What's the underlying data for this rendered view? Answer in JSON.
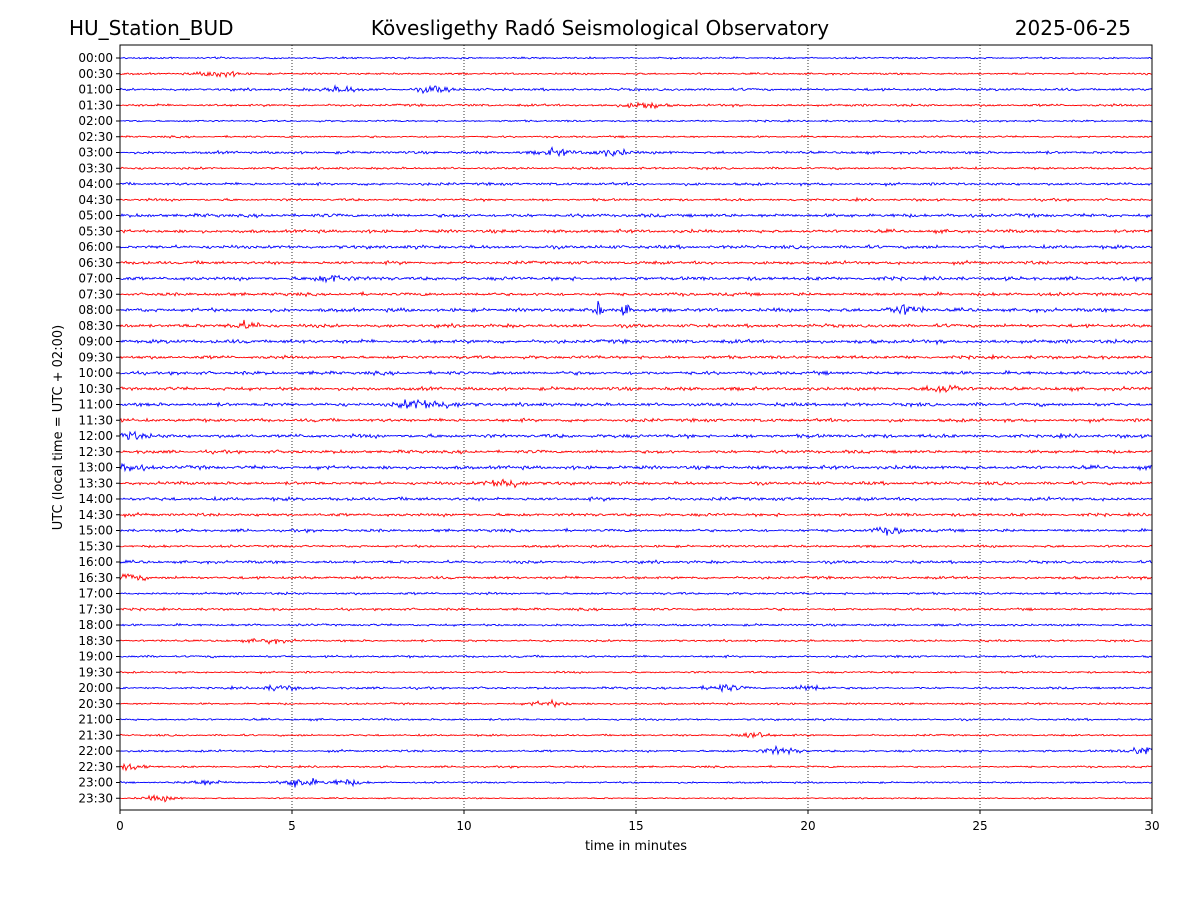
{
  "header": {
    "station": "HU_Station_BUD",
    "title": "Kövesligethy Radó Seismological Observatory",
    "date": "2025-06-25"
  },
  "chart_data": {
    "type": "line",
    "subtype": "helicorder",
    "xlabel": "time in minutes",
    "ylabel": "UTC (local time = UTC + 02:00)",
    "xlim": [
      0,
      30
    ],
    "x_ticks": [
      0,
      5,
      10,
      15,
      20,
      25,
      30
    ],
    "vertical_gridlines": [
      5,
      10,
      15,
      20,
      25
    ],
    "grid_style": "dotted vertical",
    "trace_colors": [
      "#0000ff",
      "#ff0000"
    ],
    "rows": [
      "00:00",
      "00:30",
      "01:00",
      "01:30",
      "02:00",
      "02:30",
      "03:00",
      "03:30",
      "04:00",
      "04:30",
      "05:00",
      "05:30",
      "06:00",
      "06:30",
      "07:00",
      "07:30",
      "08:00",
      "08:30",
      "09:00",
      "09:30",
      "10:00",
      "10:30",
      "11:00",
      "11:30",
      "12:00",
      "12:30",
      "13:00",
      "13:30",
      "14:00",
      "14:30",
      "15:00",
      "15:30",
      "16:00",
      "16:30",
      "17:00",
      "17:30",
      "18:00",
      "18:30",
      "19:00",
      "19:30",
      "20:00",
      "20:30",
      "21:00",
      "21:30",
      "22:00",
      "22:30",
      "23:00",
      "23:30"
    ],
    "row_noise_level": [
      0.5,
      0.55,
      0.75,
      0.7,
      0.55,
      0.55,
      0.8,
      0.65,
      0.8,
      0.7,
      1.0,
      0.95,
      1.0,
      0.95,
      1.05,
      0.95,
      1.05,
      1.0,
      1.1,
      0.95,
      1.0,
      1.0,
      1.0,
      0.95,
      1.05,
      0.95,
      1.05,
      0.95,
      1.0,
      0.9,
      0.85,
      0.7,
      0.85,
      0.8,
      0.7,
      0.7,
      0.65,
      0.6,
      0.65,
      0.55,
      0.65,
      0.55,
      0.6,
      0.55,
      0.65,
      0.55,
      0.5,
      0.4
    ],
    "events": [
      {
        "row": "00:30",
        "minute": 2.9,
        "amplitude": 1.8
      },
      {
        "row": "01:00",
        "minute": 6.4,
        "amplitude": 1.5
      },
      {
        "row": "01:00",
        "minute": 9.2,
        "amplitude": 1.4
      },
      {
        "row": "01:30",
        "minute": 15.2,
        "amplitude": 1.7
      },
      {
        "row": "03:00",
        "minute": 12.7,
        "amplitude": 1.5
      },
      {
        "row": "03:00",
        "minute": 14.3,
        "amplitude": 1.5
      },
      {
        "row": "07:00",
        "minute": 6.2,
        "amplitude": 1.6
      },
      {
        "row": "08:00",
        "minute": 13.9,
        "amplitude": 4.2
      },
      {
        "row": "08:00",
        "minute": 14.7,
        "amplitude": 4.0
      },
      {
        "row": "08:00",
        "minute": 22.8,
        "amplitude": 2.2
      },
      {
        "row": "08:30",
        "minute": 3.6,
        "amplitude": 1.6
      },
      {
        "row": "10:30",
        "minute": 24.0,
        "amplitude": 2.0
      },
      {
        "row": "11:00",
        "minute": 8.6,
        "amplitude": 2.0
      },
      {
        "row": "11:00",
        "minute": 9.3,
        "amplitude": 1.7
      },
      {
        "row": "12:00",
        "minute": 0.3,
        "amplitude": 1.6
      },
      {
        "row": "13:00",
        "minute": 0.2,
        "amplitude": 1.9
      },
      {
        "row": "13:30",
        "minute": 11.2,
        "amplitude": 2.4
      },
      {
        "row": "15:00",
        "minute": 22.4,
        "amplitude": 1.5
      },
      {
        "row": "16:30",
        "minute": 0.2,
        "amplitude": 1.8
      },
      {
        "row": "18:30",
        "minute": 4.3,
        "amplitude": 1.2
      },
      {
        "row": "20:00",
        "minute": 4.6,
        "amplitude": 1.3
      },
      {
        "row": "20:00",
        "minute": 17.5,
        "amplitude": 1.6
      },
      {
        "row": "20:00",
        "minute": 20.1,
        "amplitude": 1.3
      },
      {
        "row": "20:30",
        "minute": 12.5,
        "amplitude": 1.3
      },
      {
        "row": "21:30",
        "minute": 18.4,
        "amplitude": 1.6
      },
      {
        "row": "22:00",
        "minute": 19.2,
        "amplitude": 1.8
      },
      {
        "row": "22:00",
        "minute": 29.8,
        "amplitude": 2.2
      },
      {
        "row": "22:30",
        "minute": 0.3,
        "amplitude": 1.3
      },
      {
        "row": "23:00",
        "minute": 2.5,
        "amplitude": 1.4
      },
      {
        "row": "23:00",
        "minute": 5.2,
        "amplitude": 2.4
      },
      {
        "row": "23:00",
        "minute": 6.5,
        "amplitude": 1.5
      },
      {
        "row": "23:30",
        "minute": 1.2,
        "amplitude": 1.3
      }
    ]
  }
}
